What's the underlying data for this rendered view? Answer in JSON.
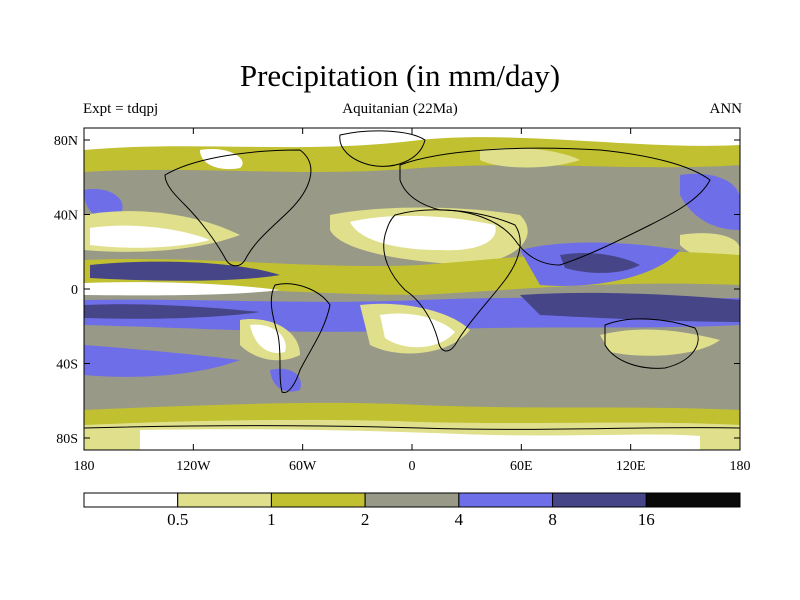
{
  "header": {
    "title": "Precipitation (in mm/day)",
    "subtitle": "Aquitanian (22Ma)",
    "left_label": "Expt = tdqpj",
    "right_label": "ANN"
  },
  "axes": {
    "lat_ticks": [
      "80N",
      "40N",
      "0",
      "40S",
      "80S"
    ],
    "lon_ticks": [
      "180",
      "120W",
      "60W",
      "0",
      "60E",
      "120E",
      "180"
    ]
  },
  "colorbar": {
    "colors": [
      "#ffffff",
      "#e0e08c",
      "#c0c030",
      "#999988",
      "#6e6ee8",
      "#454588",
      "#0a0a0a"
    ],
    "labels": [
      "0.5",
      "1",
      "2",
      "4",
      "8",
      "16"
    ]
  },
  "palette": {
    "white": "#ffffff",
    "light_yellow": "#e0e08c",
    "olive": "#c0c030",
    "gray": "#999988",
    "blue": "#6e6ee8",
    "dark_blue": "#454588"
  }
}
